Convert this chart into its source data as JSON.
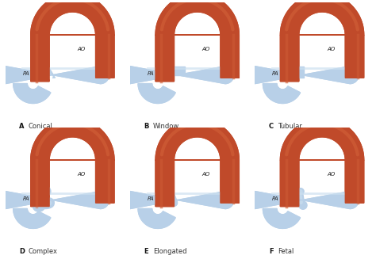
{
  "background_color": "#ffffff",
  "panel_labels": [
    "A",
    "B",
    "C",
    "D",
    "E",
    "F"
  ],
  "panel_names": [
    "Conical",
    "Window",
    "Tubular",
    "Complex",
    "Elongated",
    "Fetal"
  ],
  "ao_label": "AO",
  "pa_label": "PA",
  "aorta_color": "#c04a2a",
  "aorta_light": "#d4623a",
  "aorta_dark": "#8b2a12",
  "pa_color": "#b8d0e8",
  "pa_light": "#cce0f0",
  "pa_dark": "#8ab0cc",
  "bg": "#f8f8f8",
  "label_color": "#222222",
  "figsize": [
    4.74,
    3.27
  ],
  "dpi": 100
}
